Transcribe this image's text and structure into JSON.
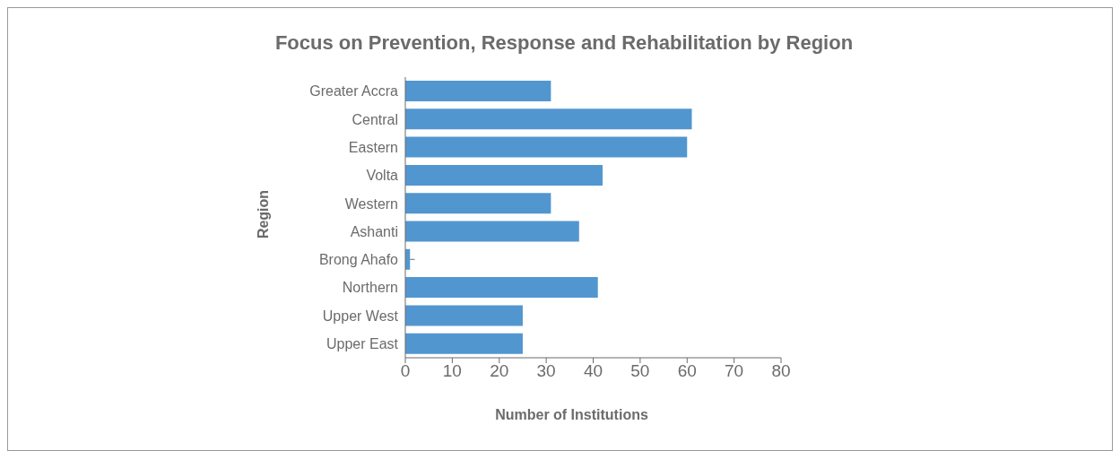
{
  "chart_data": {
    "type": "bar",
    "orientation": "horizontal",
    "title": "Focus on Prevention, Response and Rehabilitation by Region",
    "xlabel": "Number of Institutions",
    "ylabel": "Region",
    "categories": [
      "Greater Accra",
      "Central ",
      "Eastern",
      "Volta",
      "Western",
      "Ashanti",
      "Brong Ahafo",
      "Northern",
      "Upper West",
      "Upper East"
    ],
    "values": [
      31,
      61,
      60,
      42,
      31,
      37,
      1,
      41,
      25,
      25
    ],
    "errors": [
      null,
      null,
      null,
      null,
      null,
      null,
      [
        1,
        2
      ],
      null,
      null,
      null
    ],
    "color": "#5296d0",
    "xlim": [
      0,
      80
    ],
    "xticks": [
      0,
      10,
      20,
      30,
      40,
      50,
      60,
      70,
      80
    ],
    "grid": false,
    "legend": false
  }
}
